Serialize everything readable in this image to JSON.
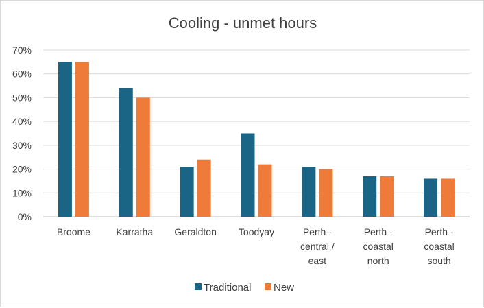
{
  "chart_data": {
    "type": "bar",
    "title": "Cooling - unmet hours",
    "xlabel": "",
    "ylabel": "",
    "ylim": [
      0,
      0.7
    ],
    "yticks": [
      "0%",
      "10%",
      "20%",
      "30%",
      "40%",
      "50%",
      "60%",
      "70%"
    ],
    "grid": true,
    "legend_position": "bottom",
    "categories": [
      [
        "Broome"
      ],
      [
        "Karratha"
      ],
      [
        "Geraldton"
      ],
      [
        "Toodyay"
      ],
      [
        "Perth -",
        "central /",
        "east"
      ],
      [
        "Perth -",
        "coastal",
        "north"
      ],
      [
        "Perth -",
        "coastal",
        "south"
      ]
    ],
    "series": [
      {
        "name": "Traditional",
        "color": "#1a6585",
        "values": [
          0.65,
          0.54,
          0.21,
          0.35,
          0.21,
          0.17,
          0.16
        ]
      },
      {
        "name": "New",
        "color": "#ee7b3a",
        "values": [
          0.65,
          0.5,
          0.24,
          0.22,
          0.2,
          0.17,
          0.16
        ]
      }
    ]
  }
}
